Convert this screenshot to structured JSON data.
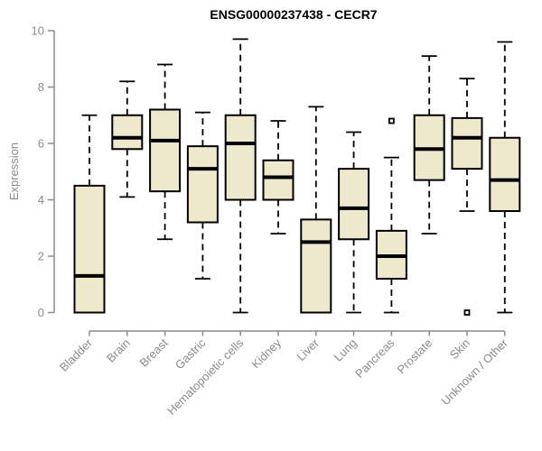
{
  "chart_data": {
    "type": "boxplot",
    "title": "ENSG00000237438 - CECR7",
    "ylabel": "Expression",
    "xlabel": "",
    "ylim": [
      0,
      10
    ],
    "yticks": [
      0,
      2,
      4,
      6,
      8,
      10
    ],
    "grid": false,
    "legend": "none",
    "categories": [
      "Bladder",
      "Brain",
      "Breast",
      "Gastric",
      "Hematopoietic cells",
      "Kidney",
      "Liver",
      "Lung",
      "Pancreas",
      "Prostate",
      "Skin",
      "Unknown / Other"
    ],
    "series": [
      {
        "category": "Bladder",
        "min": 0,
        "q1": 0,
        "median": 1.3,
        "q3": 4.5,
        "max": 7.0,
        "outliers": []
      },
      {
        "category": "Brain",
        "min": 4.1,
        "q1": 5.8,
        "median": 6.2,
        "q3": 7.0,
        "max": 8.2,
        "outliers": []
      },
      {
        "category": "Breast",
        "min": 2.6,
        "q1": 4.3,
        "median": 6.1,
        "q3": 7.2,
        "max": 8.8,
        "outliers": []
      },
      {
        "category": "Gastric",
        "min": 1.2,
        "q1": 3.2,
        "median": 5.1,
        "q3": 5.9,
        "max": 7.1,
        "outliers": []
      },
      {
        "category": "Hematopoietic cells",
        "min": 0,
        "q1": 4.0,
        "median": 6.0,
        "q3": 7.0,
        "max": 9.7,
        "outliers": []
      },
      {
        "category": "Kidney",
        "min": 2.8,
        "q1": 4.0,
        "median": 4.8,
        "q3": 5.4,
        "max": 6.8,
        "outliers": []
      },
      {
        "category": "Liver",
        "min": 0,
        "q1": 0,
        "median": 2.5,
        "q3": 3.3,
        "max": 7.3,
        "outliers": []
      },
      {
        "category": "Lung",
        "min": 0,
        "q1": 2.6,
        "median": 3.7,
        "q3": 5.1,
        "max": 6.4,
        "outliers": []
      },
      {
        "category": "Pancreas",
        "min": 0,
        "q1": 1.2,
        "median": 2.0,
        "q3": 2.9,
        "max": 5.5,
        "outliers": [
          6.8
        ]
      },
      {
        "category": "Prostate",
        "min": 2.8,
        "q1": 4.7,
        "median": 5.8,
        "q3": 7.0,
        "max": 9.1,
        "outliers": []
      },
      {
        "category": "Skin",
        "min": 3.6,
        "q1": 5.1,
        "median": 6.2,
        "q3": 6.9,
        "max": 8.3,
        "outliers": [
          0
        ]
      },
      {
        "category": "Unknown / Other",
        "min": 0,
        "q1": 3.6,
        "median": 4.7,
        "q3": 6.2,
        "max": 9.6,
        "outliers": []
      }
    ],
    "colors": {
      "box_fill": "#EEE8CD",
      "box_stroke": "#000000",
      "median": "#000000",
      "whisker": "#000000",
      "outlier": "#000000",
      "axis": "#8B8B8B",
      "tick_label": "#8B8B8B",
      "title": "#000000",
      "background": "#FFFFFF"
    }
  }
}
